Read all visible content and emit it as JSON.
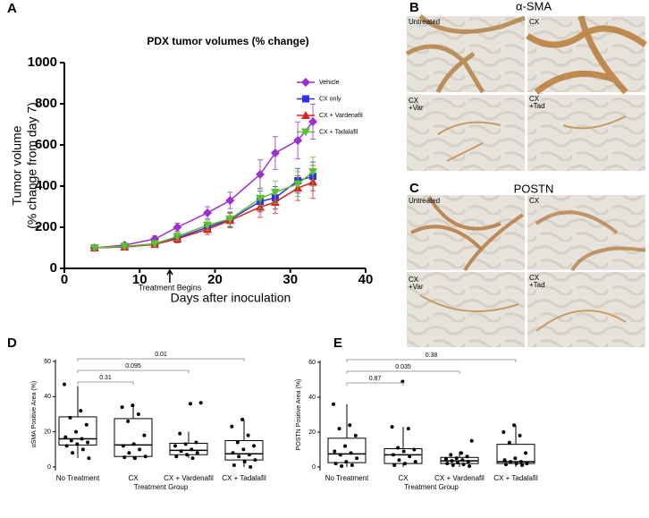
{
  "chart_data": [
    {
      "type": "line",
      "panel": "A",
      "title": "PDX tumor volumes  (% change)",
      "xlabel": "Days after inoculation",
      "ylabel": [
        "Tumor  volume",
        "(% change from day 7)"
      ],
      "xlim": [
        0,
        40
      ],
      "xticks": [
        0,
        10,
        20,
        30,
        40
      ],
      "ylim": [
        0,
        1000
      ],
      "yticks": [
        0,
        200,
        400,
        600,
        800,
        1000
      ],
      "annotation": {
        "text": "Treatment  Begins",
        "x": 14
      },
      "x": [
        4,
        8,
        12,
        15,
        19,
        22,
        26,
        28,
        31,
        33
      ],
      "series": [
        {
          "name": "Vehicle",
          "color": "#9b30d0",
          "marker": "diamond",
          "values": [
            100,
            113,
            143,
            200,
            270,
            330,
            457,
            561,
            622,
            713
          ],
          "errors": [
            10,
            10,
            15,
            20,
            30,
            40,
            70,
            80,
            90,
            85
          ]
        },
        {
          "name": "CX only",
          "color": "#2f2ff0",
          "marker": "square",
          "values": [
            100,
            104,
            117,
            148,
            200,
            237,
            325,
            343,
            426,
            447
          ],
          "errors": [
            10,
            10,
            15,
            20,
            25,
            35,
            50,
            55,
            60,
            70
          ]
        },
        {
          "name": "CX + Vardenafil",
          "color": "#e02020",
          "marker": "triangle",
          "values": [
            100,
            105,
            117,
            144,
            190,
            233,
            298,
            322,
            390,
            420
          ],
          "errors": [
            10,
            10,
            15,
            20,
            25,
            35,
            50,
            55,
            60,
            80
          ]
        },
        {
          "name": "CX + Tadalafil",
          "color": "#5cc030",
          "marker": "triangle-down",
          "values": [
            100,
            107,
            120,
            155,
            210,
            240,
            340,
            370,
            410,
            470
          ],
          "errors": [
            10,
            10,
            15,
            20,
            25,
            35,
            50,
            55,
            60,
            70
          ]
        }
      ]
    },
    {
      "type": "box",
      "panel": "D",
      "ylabel": "αSMA Positive Area (%)",
      "xlabel": "Treatment Group",
      "ylim": [
        0,
        60
      ],
      "yticks": [
        0,
        20,
        40,
        60
      ],
      "categories": [
        "No Treatment",
        "CX",
        "CX + Vardenafil",
        "CX + Tadalafil"
      ],
      "p_values": [
        0.31,
        0.095,
        0.01
      ],
      "boxes": [
        {
          "min": 5,
          "q1": 12.5,
          "median": 16,
          "q3": 28.5,
          "max": 46,
          "points": [
            47,
            32,
            28,
            24,
            20,
            17,
            16,
            15,
            14,
            13,
            12,
            10,
            8,
            5
          ]
        },
        {
          "min": 5,
          "q1": 6,
          "median": 12.5,
          "q3": 27.5,
          "max": 36,
          "points": [
            35,
            34,
            30,
            26,
            18,
            13,
            12,
            10,
            8,
            6,
            5,
            5.5
          ]
        },
        {
          "min": 5,
          "q1": 7,
          "median": 9.5,
          "q3": 13.5,
          "max": 20,
          "points": [
            36.5,
            36,
            19,
            14,
            13,
            12,
            10,
            9,
            8,
            7,
            6,
            5
          ]
        },
        {
          "min": 0,
          "q1": 4,
          "median": 7.5,
          "q3": 15,
          "max": 27,
          "points": [
            27,
            23,
            18,
            14,
            12,
            10,
            8,
            7,
            6,
            4,
            3,
            1,
            0
          ]
        }
      ]
    },
    {
      "type": "box",
      "panel": "E",
      "ylabel": "POSTN Positive Area (%)",
      "xlabel": "Treatment Group",
      "ylim": [
        0,
        60
      ],
      "yticks": [
        0,
        20,
        40,
        60
      ],
      "categories": [
        "No Treatment",
        "CX",
        "CX + Vardenafil",
        "CX + Tadalafil"
      ],
      "p_values": [
        0.87,
        0.035,
        0.38
      ],
      "boxes": [
        {
          "min": 0,
          "q1": 2.5,
          "median": 7.5,
          "q3": 16.5,
          "max": 36,
          "points": [
            36,
            24,
            22,
            18,
            12,
            9,
            8,
            7,
            5,
            3,
            2,
            1,
            0.5
          ]
        },
        {
          "min": 0,
          "q1": 2,
          "median": 7,
          "q3": 10.5,
          "max": 23,
          "points": [
            49,
            23,
            22,
            11,
            10,
            9,
            7,
            6,
            4,
            3,
            2,
            1
          ]
        },
        {
          "min": 0,
          "q1": 2,
          "median": 3.5,
          "q3": 5.5,
          "max": 9,
          "points": [
            15,
            8,
            7,
            6,
            5,
            4.5,
            4,
            3.5,
            3,
            2.5,
            2,
            1.5,
            1,
            0.5
          ]
        },
        {
          "min": 0,
          "q1": 2,
          "median": 3,
          "q3": 13,
          "max": 24,
          "points": [
            24,
            20,
            18,
            14,
            8,
            5,
            4,
            3,
            3,
            2,
            2,
            1.5,
            1
          ]
        }
      ]
    }
  ],
  "micrographs": [
    {
      "panel": "B",
      "title": "α-SMA",
      "labels": [
        "Untreated",
        "CX",
        "CX\n+Var",
        "CX\n+Tad"
      ]
    },
    {
      "panel": "C",
      "title": "POSTN",
      "labels": [
        "Untreated",
        "CX",
        "CX\n+Var",
        "CX\n+Tad"
      ]
    }
  ]
}
